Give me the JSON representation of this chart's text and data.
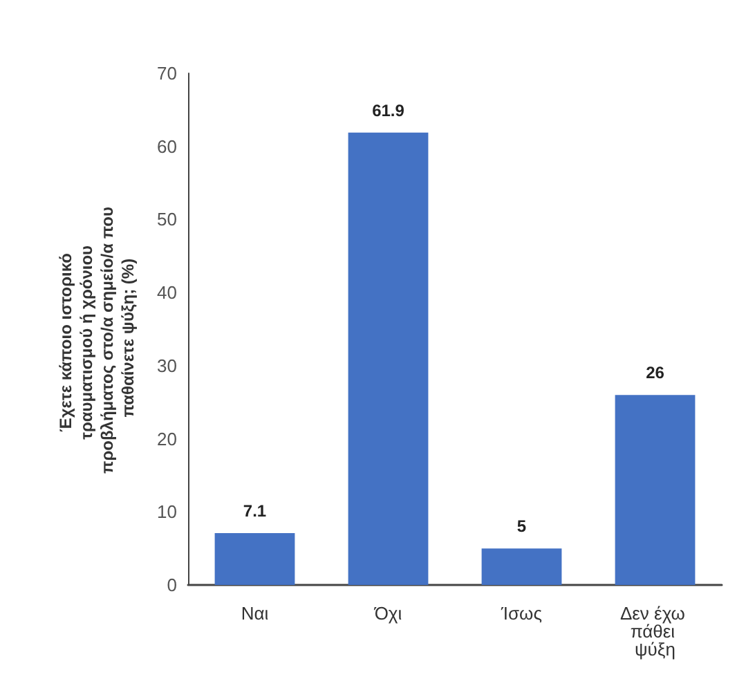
{
  "chart_data": {
    "type": "bar",
    "ylabel": "Έχετε κάποιο ιστορικό τραυματισμού ή χρόνιου προβλήματος στο/α σημείο/α που παθαίνετε ψύξη; (%)",
    "categories": [
      "Ναι",
      "Όχι",
      "Ίσως",
      "Δεν έχω πάθει ψύξη"
    ],
    "values": [
      7.1,
      61.9,
      5,
      26
    ],
    "color": "#4472c4",
    "ylim": [
      0,
      70
    ],
    "yticks": [
      0,
      10,
      20,
      30,
      40,
      50,
      60,
      70
    ],
    "grid": false,
    "data_labels": true
  }
}
